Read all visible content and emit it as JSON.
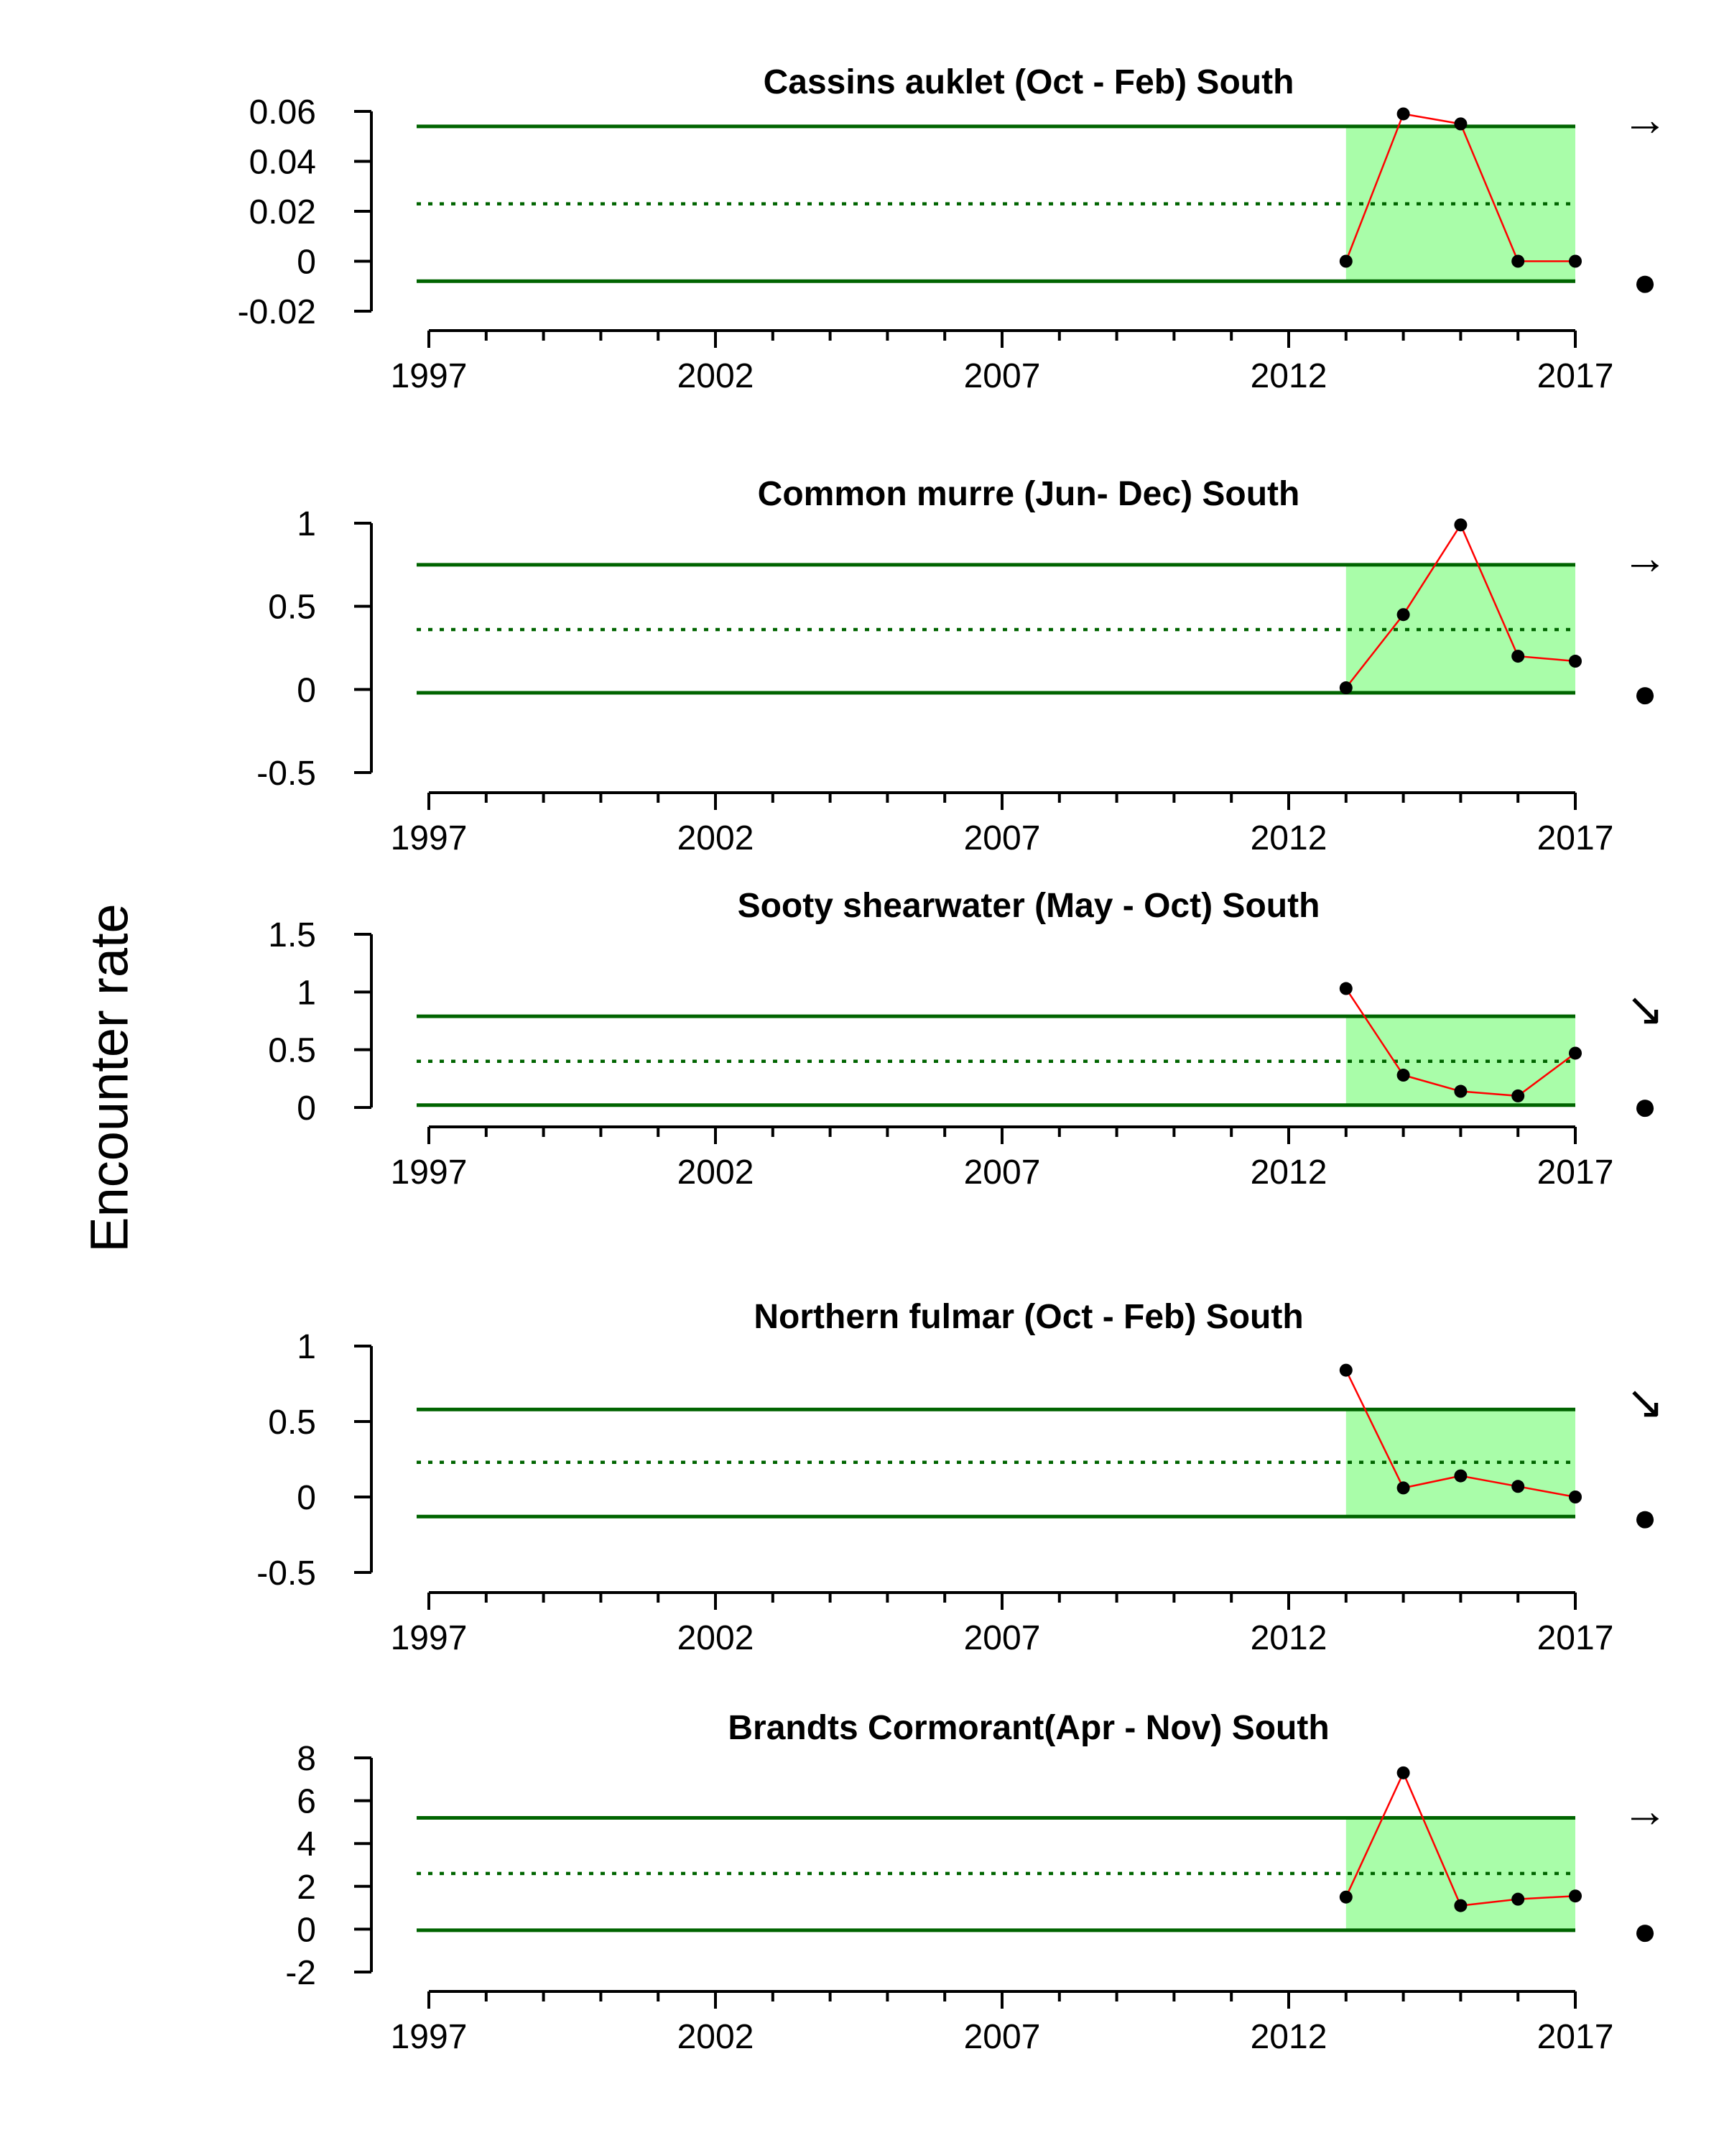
{
  "figure": {
    "ylabel": "Encounter rate",
    "colors": {
      "axis": "#000000",
      "limit_line": "#006400",
      "shade": "#a9fda9",
      "series": "#ff0000",
      "point": "#000000"
    }
  },
  "chart_data": [
    {
      "type": "line",
      "title": "Cassins auklet (Oct - Feb) South",
      "ylim": [
        -0.02,
        0.06
      ],
      "yticks": [
        -0.02,
        0,
        0.02,
        0.04,
        0.06
      ],
      "ytick_labels": [
        "-0.02",
        "0",
        "0.02",
        "0.04",
        "0.06"
      ],
      "xlim": [
        1997,
        2017
      ],
      "xticks_labeled": [
        1997,
        2002,
        2007,
        2012,
        2017
      ],
      "x": [
        2013,
        2014,
        2015,
        2016,
        2017
      ],
      "y": [
        0,
        0.059,
        0.055,
        0,
        0
      ],
      "upper_limit": 0.054,
      "mean": 0.023,
      "lower_limit": -0.008,
      "shaded_x_range": [
        2013,
        2017
      ],
      "trend_symbol": "→",
      "status_marker": "●"
    },
    {
      "type": "line",
      "title": "Common murre (Jun- Dec) South",
      "ylim": [
        -0.5,
        1
      ],
      "yticks": [
        -0.5,
        0,
        0.5,
        1
      ],
      "ytick_labels": [
        "-0.5",
        "0",
        "0.5",
        "1"
      ],
      "xlim": [
        1997,
        2017
      ],
      "xticks_labeled": [
        1997,
        2002,
        2007,
        2012,
        2017
      ],
      "x": [
        2013,
        2014,
        2015,
        2016,
        2017
      ],
      "y": [
        0.01,
        0.45,
        0.99,
        0.2,
        0.17
      ],
      "upper_limit": 0.75,
      "mean": 0.36,
      "lower_limit": -0.02,
      "shaded_x_range": [
        2013,
        2017
      ],
      "trend_symbol": "→",
      "status_marker": "●"
    },
    {
      "type": "line",
      "title": "Sooty shearwater (May - Oct) South",
      "ylim": [
        0,
        1.5
      ],
      "yticks": [
        0,
        0.5,
        1,
        1.5
      ],
      "ytick_labels": [
        "0",
        "0.5",
        "1",
        "1.5"
      ],
      "xlim": [
        1997,
        2017
      ],
      "xticks_labeled": [
        1997,
        2002,
        2007,
        2012,
        2017
      ],
      "x": [
        2013,
        2014,
        2015,
        2016,
        2017
      ],
      "y": [
        1.03,
        0.28,
        0.14,
        0.1,
        0.47
      ],
      "upper_limit": 0.79,
      "mean": 0.4,
      "lower_limit": 0.02,
      "shaded_x_range": [
        2013,
        2017
      ],
      "trend_symbol": "↘",
      "status_marker": "●"
    },
    {
      "type": "line",
      "title": "Northern fulmar (Oct - Feb) South",
      "ylim": [
        -0.5,
        1
      ],
      "yticks": [
        -0.5,
        0,
        0.5,
        1
      ],
      "ytick_labels": [
        "-0.5",
        "0",
        "0.5",
        "1"
      ],
      "xlim": [
        1997,
        2017
      ],
      "xticks_labeled": [
        1997,
        2002,
        2007,
        2012,
        2017
      ],
      "x": [
        2013,
        2014,
        2015,
        2016,
        2017
      ],
      "y": [
        0.84,
        0.06,
        0.14,
        0.07,
        0
      ],
      "upper_limit": 0.58,
      "mean": 0.23,
      "lower_limit": -0.13,
      "shaded_x_range": [
        2013,
        2017
      ],
      "trend_symbol": "↘",
      "status_marker": "●"
    },
    {
      "type": "line",
      "title": "Brandts Cormorant(Apr - Nov) South",
      "ylim": [
        -2,
        8
      ],
      "yticks": [
        -2,
        0,
        2,
        4,
        6,
        8
      ],
      "ytick_labels": [
        "-2",
        "0",
        "2",
        "4",
        "6",
        "8"
      ],
      "xlim": [
        1997,
        2017
      ],
      "xticks_labeled": [
        1997,
        2002,
        2007,
        2012,
        2017
      ],
      "x": [
        2013,
        2014,
        2015,
        2016,
        2017
      ],
      "y": [
        1.5,
        7.3,
        1.1,
        1.4,
        1.55
      ],
      "upper_limit": 5.2,
      "mean": 2.6,
      "lower_limit": -0.05,
      "shaded_x_range": [
        2013,
        2017
      ],
      "trend_symbol": "→",
      "status_marker": "●"
    }
  ]
}
